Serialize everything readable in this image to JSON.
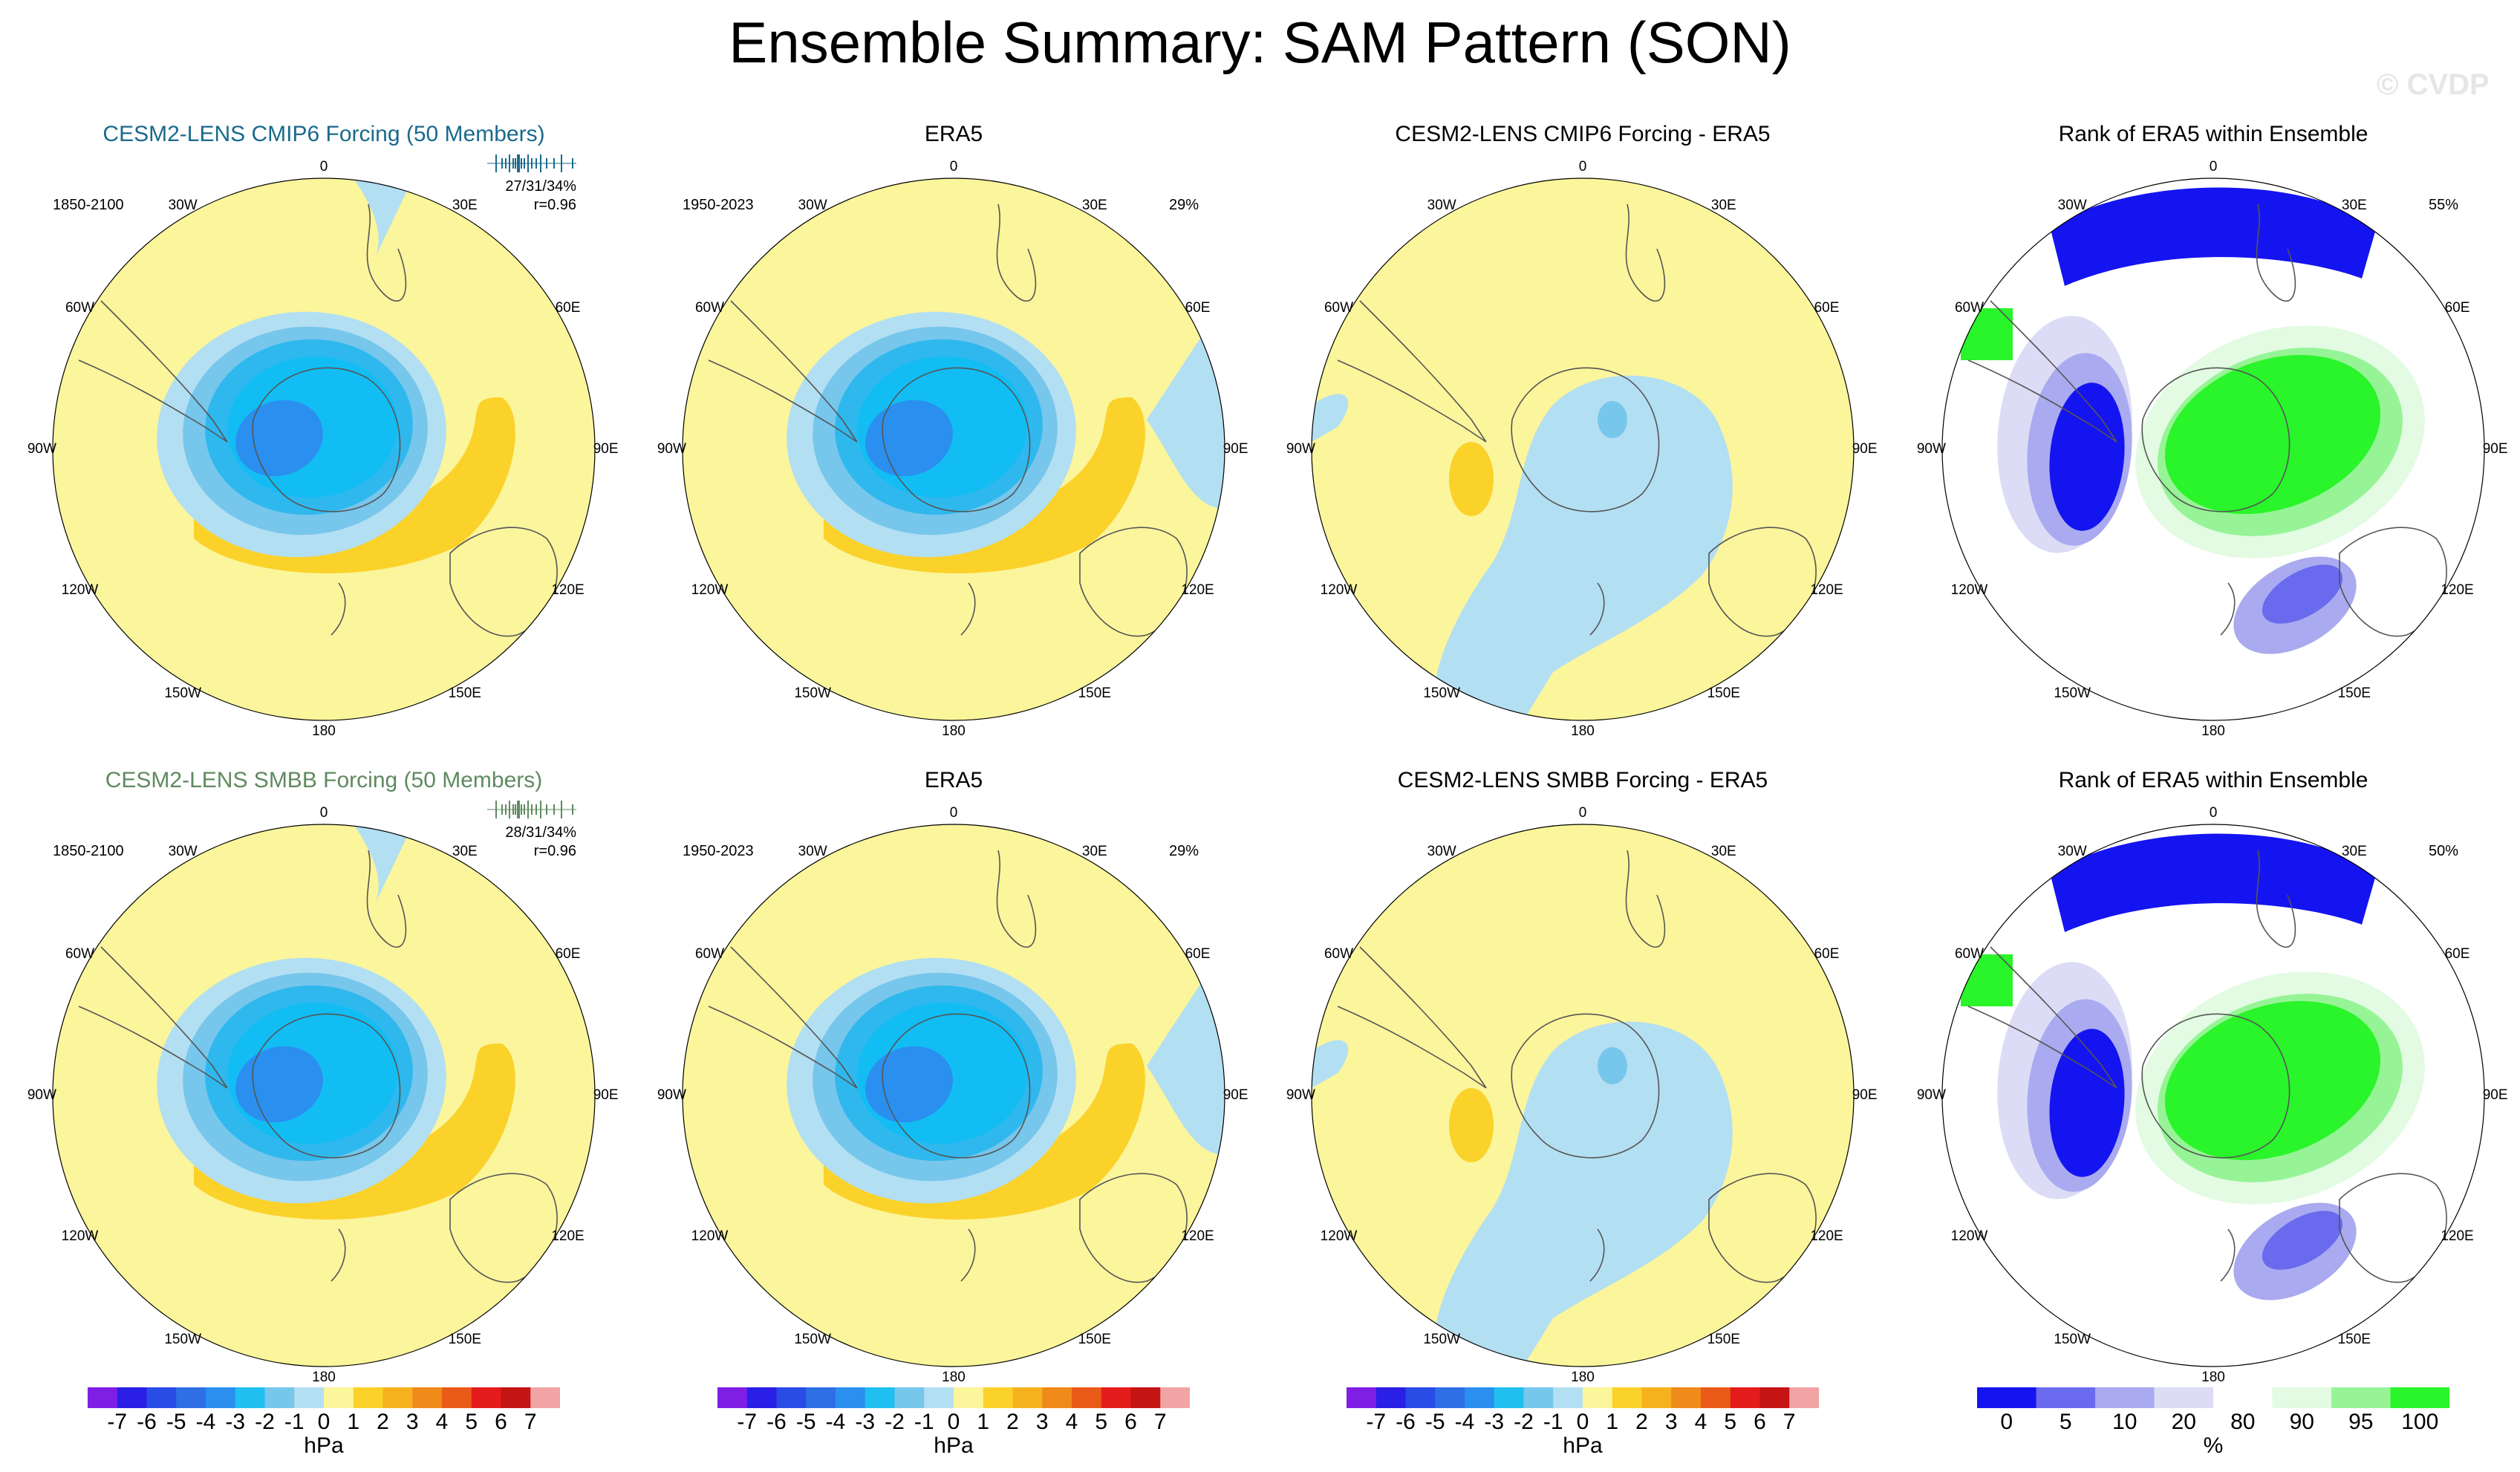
{
  "figure": {
    "title": "Ensemble Summary: SAM Pattern (SON)",
    "watermark": "© CVDP"
  },
  "rows": [
    {
      "model_title": "CESM2-LENS CMIP6 Forcing (50 Members)",
      "model_title_color": "#1a6a8c",
      "model_period": "1850-2100",
      "model_stat_1": "27/31/34%",
      "model_stat_2": "r=0.96",
      "era5_title": "ERA5",
      "era5_period": "1950-2023",
      "era5_pct": "29%",
      "diff_title": "CESM2-LENS CMIP6 Forcing - ERA5",
      "rank_title": "Rank of ERA5 within Ensemble",
      "rank_pct": "55%"
    },
    {
      "model_title": "CESM2-LENS SMBB Forcing (50 Members)",
      "model_title_color": "#5f8a5f",
      "model_period": "1850-2100",
      "model_stat_1": "28/31/34%",
      "model_stat_2": "r=0.96",
      "era5_title": "ERA5",
      "era5_period": "1950-2023",
      "era5_pct": "29%",
      "diff_title": "CESM2-LENS SMBB Forcing - ERA5",
      "rank_title": "Rank of ERA5 within Ensemble",
      "rank_pct": "50%"
    }
  ],
  "longitude_labels": [
    "0",
    "30E",
    "60E",
    "90E",
    "120E",
    "150E",
    "180",
    "150W",
    "120W",
    "90W",
    "60W",
    "30W"
  ],
  "pressure_colorbar": {
    "unit": "hPa",
    "ticks": [
      "-7",
      "-6",
      "-5",
      "-4",
      "-3",
      "-2",
      "-1",
      "0",
      "1",
      "2",
      "3",
      "4",
      "5",
      "6",
      "7"
    ],
    "colors": [
      "#7f1fe6",
      "#2a1fe6",
      "#2a4ce6",
      "#2f6fe6",
      "#2a8fef",
      "#1fbff0",
      "#77c6ec",
      "#b3dff2",
      "#fbf59c",
      "#fbd22a",
      "#f6b21e",
      "#f08a19",
      "#ea5a18",
      "#e51c1c",
      "#c41414",
      "#f2a4a4"
    ]
  },
  "rank_colorbar": {
    "unit": "%",
    "ticks": [
      "0",
      "5",
      "10",
      "20",
      "80",
      "90",
      "95",
      "100"
    ],
    "colors": [
      "#1414f0",
      "#6a6aee",
      "#aaaaf0",
      "#dcdcf6",
      "#ffffff",
      "#e2fbe2",
      "#96f496",
      "#2af42a"
    ]
  }
}
